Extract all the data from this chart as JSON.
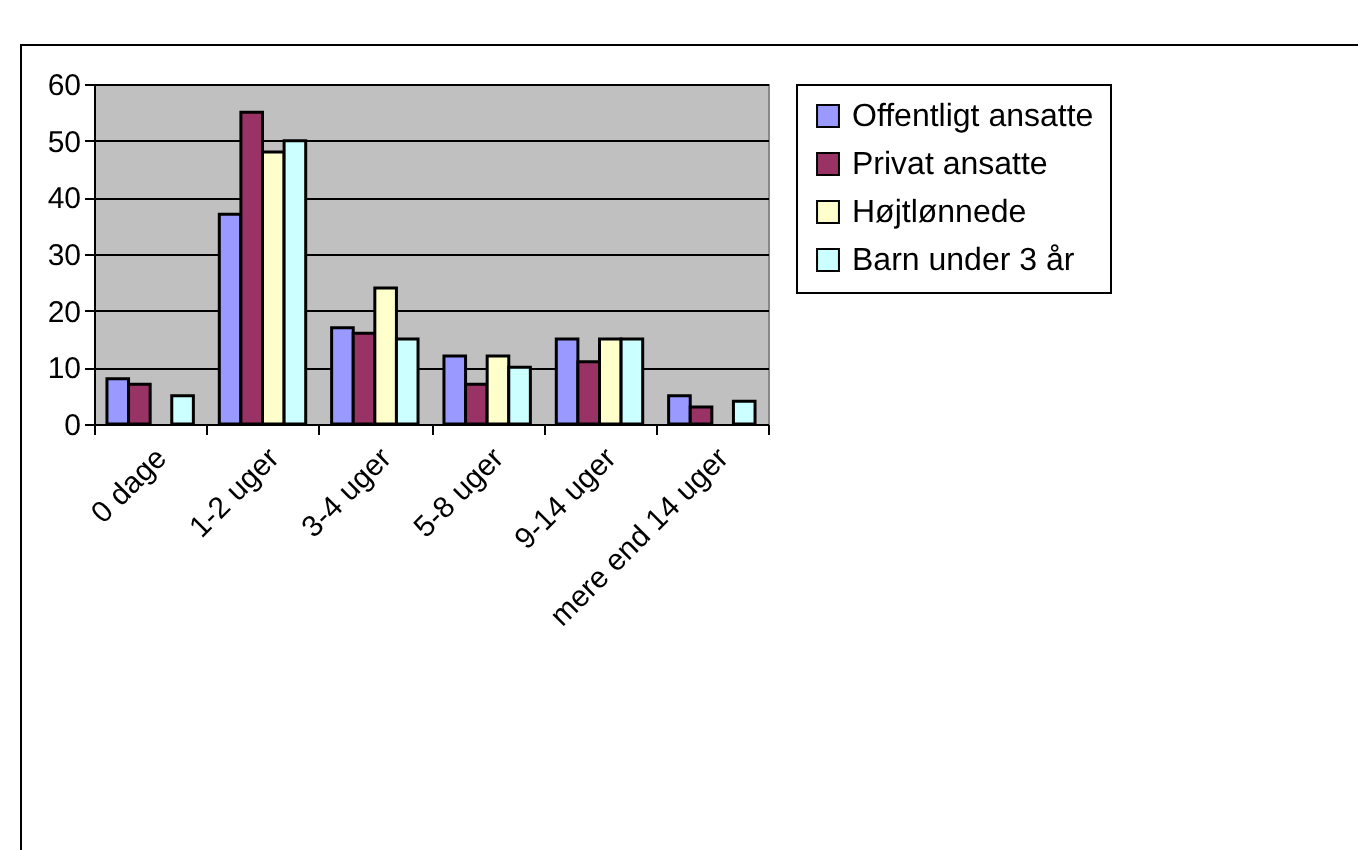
{
  "chart_data": {
    "type": "bar",
    "categories": [
      "0 dage",
      "1-2 uger",
      "3-4 uger",
      "5-8 uger",
      "9-14 uger",
      "mere end 14 uger"
    ],
    "series": [
      {
        "name": "Offentligt ansatte",
        "color": "#9999ff",
        "values": [
          8,
          37,
          17,
          12,
          15,
          5
        ]
      },
      {
        "name": "Privat ansatte",
        "color": "#993366",
        "values": [
          7,
          55,
          16,
          7,
          11,
          3
        ]
      },
      {
        "name": "Højtlønnede",
        "color": "#ffffcc",
        "values": [
          null,
          48,
          24,
          12,
          15,
          null
        ]
      },
      {
        "name": "Barn under 3 år",
        "color": "#ccffff",
        "values": [
          5,
          50,
          15,
          10,
          15,
          4
        ]
      }
    ],
    "ylim": [
      0,
      60
    ],
    "yticks": [
      0,
      10,
      20,
      30,
      40,
      50,
      60
    ],
    "grid": "y",
    "legend": "right"
  }
}
